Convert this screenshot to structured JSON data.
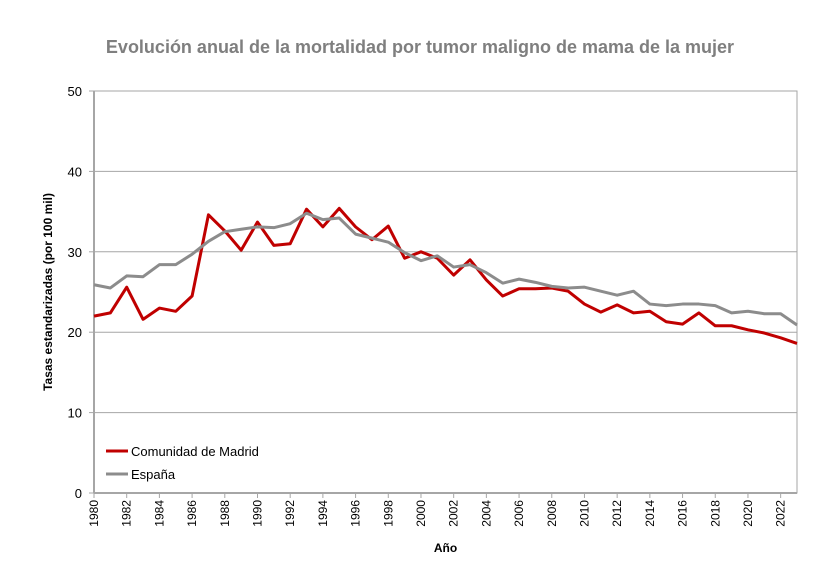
{
  "chart_data": {
    "type": "line",
    "title": "Evolución anual de la mortalidad por tumor maligno de mama de la mujer",
    "xlabel": "Año",
    "ylabel": "Tasas estandarizadas (por 100 mil)",
    "ylim": [
      0,
      50
    ],
    "yticks": [
      0,
      10,
      20,
      30,
      40,
      50
    ],
    "xlim": [
      1980,
      2023
    ],
    "xticks": [
      1980,
      1982,
      1984,
      1986,
      1988,
      1990,
      1992,
      1994,
      1996,
      1998,
      2000,
      2002,
      2004,
      2006,
      2008,
      2010,
      2012,
      2014,
      2016,
      2018,
      2020,
      2022
    ],
    "grid": "horizontal",
    "legend": "bottom-left",
    "x": [
      1980,
      1981,
      1982,
      1983,
      1984,
      1985,
      1986,
      1987,
      1988,
      1989,
      1990,
      1991,
      1992,
      1993,
      1994,
      1995,
      1996,
      1997,
      1998,
      1999,
      2000,
      2001,
      2002,
      2003,
      2004,
      2005,
      2006,
      2007,
      2008,
      2009,
      2010,
      2011,
      2012,
      2013,
      2014,
      2015,
      2016,
      2017,
      2018,
      2019,
      2020,
      2021,
      2022,
      2023
    ],
    "series": [
      {
        "name": "Comunidad de Madrid",
        "color": "#c00000",
        "values": [
          22.0,
          22.4,
          25.6,
          21.6,
          23.0,
          22.6,
          24.5,
          34.6,
          32.6,
          30.2,
          33.7,
          30.8,
          31.0,
          35.3,
          33.1,
          35.4,
          33.1,
          31.5,
          33.2,
          29.2,
          30.0,
          29.2,
          27.1,
          29.0,
          26.5,
          24.5,
          25.4,
          25.4,
          25.5,
          25.1,
          23.5,
          22.5,
          23.4,
          22.4,
          22.6,
          21.3,
          21.0,
          22.4,
          20.8,
          20.8,
          20.3,
          19.9,
          19.3,
          18.6
        ]
      },
      {
        "name": "España",
        "color": "#8c8c8c",
        "values": [
          25.9,
          25.5,
          27.0,
          26.9,
          28.4,
          28.4,
          29.7,
          31.3,
          32.5,
          32.8,
          33.1,
          33.0,
          33.5,
          34.8,
          34.0,
          34.2,
          32.2,
          31.7,
          31.2,
          29.9,
          28.9,
          29.5,
          28.1,
          28.4,
          27.4,
          26.1,
          26.6,
          26.2,
          25.7,
          25.5,
          25.6,
          25.1,
          24.6,
          25.1,
          23.5,
          23.3,
          23.5,
          23.5,
          23.3,
          22.4,
          22.6,
          22.3,
          22.3,
          20.9
        ]
      }
    ]
  }
}
